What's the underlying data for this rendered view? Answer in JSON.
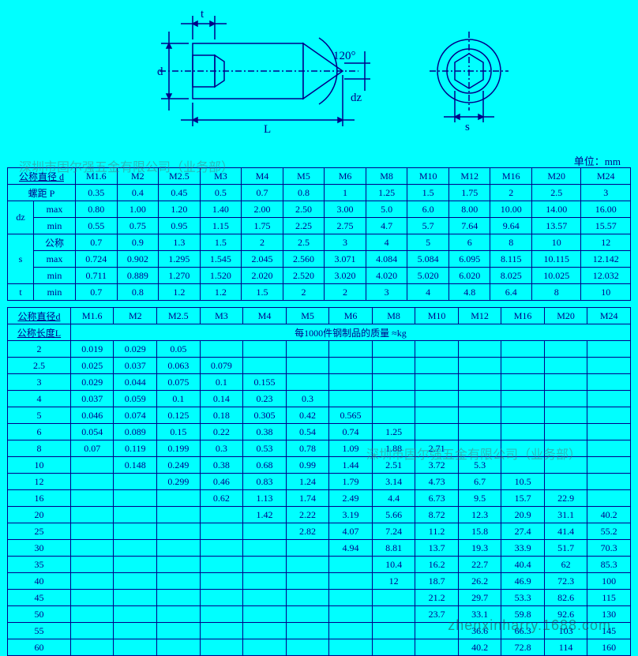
{
  "unit_label": "单位：mm",
  "diagram": {
    "labels": {
      "t": "t",
      "d": "d",
      "L": "L",
      "angle": "120°",
      "dz": "dz",
      "s": "s"
    },
    "stroke": "#000088",
    "fill": "#00ffff"
  },
  "watermarks": {
    "wm1": "深圳市固尔强五金有限公司（业务部）",
    "wm2": "深圳市固尔强五金有限公司（业务部）",
    "wm3": "zhenxinharry.1688.com"
  },
  "sizes_header": "公称直径 d",
  "sizes": [
    "M1.6",
    "M2",
    "M2.5",
    "M3",
    "M4",
    "M5",
    "M6",
    "M8",
    "M10",
    "M12",
    "M16",
    "M20",
    "M24"
  ],
  "rows_labels": {
    "pitch": "螺距 P",
    "dz": "dz",
    "s": "s",
    "t": "t",
    "max": "max",
    "min": "min",
    "nom": "公称"
  },
  "pitch": [
    "0.35",
    "0.4",
    "0.45",
    "0.5",
    "0.7",
    "0.8",
    "1",
    "1.25",
    "1.5",
    "1.75",
    "2",
    "2.5",
    "3"
  ],
  "dz_max": [
    "0.80",
    "1.00",
    "1.20",
    "1.40",
    "2.00",
    "2.50",
    "3.00",
    "5.0",
    "6.0",
    "8.00",
    "10.00",
    "14.00",
    "16.00"
  ],
  "dz_min": [
    "0.55",
    "0.75",
    "0.95",
    "1.15",
    "1.75",
    "2.25",
    "2.75",
    "4.7",
    "5.7",
    "7.64",
    "9.64",
    "13.57",
    "15.57"
  ],
  "s_nom": [
    "0.7",
    "0.9",
    "1.3",
    "1.5",
    "2",
    "2.5",
    "3",
    "4",
    "5",
    "6",
    "8",
    "10",
    "12"
  ],
  "s_max": [
    "0.724",
    "0.902",
    "1.295",
    "1.545",
    "2.045",
    "2.560",
    "3.071",
    "4.084",
    "5.084",
    "6.095",
    "8.115",
    "10.115",
    "12.142"
  ],
  "s_min": [
    "0.711",
    "0.889",
    "1.270",
    "1.520",
    "2.020",
    "2.520",
    "3.020",
    "4.020",
    "5.020",
    "6.020",
    "8.025",
    "10.025",
    "12.032"
  ],
  "t_min": [
    "0.7",
    "0.8",
    "1.2",
    "1.2",
    "1.5",
    "2",
    "2",
    "3",
    "4",
    "4.8",
    "6.4",
    "8",
    "10"
  ],
  "mass_header1": "公称直径d",
  "mass_header2": "公称长度L",
  "mass_caption": "每1000件钢制品的质量 ≈kg",
  "mass_lengths": [
    "2",
    "2.5",
    "3",
    "4",
    "5",
    "6",
    "8",
    "10",
    "12",
    "16",
    "20",
    "25",
    "30",
    "35",
    "40",
    "45",
    "50",
    "55",
    "60"
  ],
  "mass": [
    [
      "0.019",
      "0.029",
      "0.05",
      "",
      "",
      "",
      "",
      "",
      "",
      "",
      "",
      "",
      ""
    ],
    [
      "0.025",
      "0.037",
      "0.063",
      "0.079",
      "",
      "",
      "",
      "",
      "",
      "",
      "",
      "",
      ""
    ],
    [
      "0.029",
      "0.044",
      "0.075",
      "0.1",
      "0.155",
      "",
      "",
      "",
      "",
      "",
      "",
      "",
      ""
    ],
    [
      "0.037",
      "0.059",
      "0.1",
      "0.14",
      "0.23",
      "0.3",
      "",
      "",
      "",
      "",
      "",
      "",
      ""
    ],
    [
      "0.046",
      "0.074",
      "0.125",
      "0.18",
      "0.305",
      "0.42",
      "0.565",
      "",
      "",
      "",
      "",
      "",
      ""
    ],
    [
      "0.054",
      "0.089",
      "0.15",
      "0.22",
      "0.38",
      "0.54",
      "0.74",
      "1.25",
      "",
      "",
      "",
      "",
      ""
    ],
    [
      "0.07",
      "0.119",
      "0.199",
      "0.3",
      "0.53",
      "0.78",
      "1.09",
      "1.88",
      "2.71",
      "",
      "",
      "",
      ""
    ],
    [
      "",
      "0.148",
      "0.249",
      "0.38",
      "0.68",
      "0.99",
      "1.44",
      "2.51",
      "3.72",
      "5.3",
      "",
      "",
      ""
    ],
    [
      "",
      "",
      "0.299",
      "0.46",
      "0.83",
      "1.24",
      "1.79",
      "3.14",
      "4.73",
      "6.7",
      "10.5",
      "",
      ""
    ],
    [
      "",
      "",
      "",
      "0.62",
      "1.13",
      "1.74",
      "2.49",
      "4.4",
      "6.73",
      "9.5",
      "15.7",
      "22.9",
      ""
    ],
    [
      "",
      "",
      "",
      "",
      "1.42",
      "2.22",
      "3.19",
      "5.66",
      "8.72",
      "12.3",
      "20.9",
      "31.1",
      "40.2"
    ],
    [
      "",
      "",
      "",
      "",
      "",
      "2.82",
      "4.07",
      "7.24",
      "11.2",
      "15.8",
      "27.4",
      "41.4",
      "55.2"
    ],
    [
      "",
      "",
      "",
      "",
      "",
      "",
      "4.94",
      "8.81",
      "13.7",
      "19.3",
      "33.9",
      "51.7",
      "70.3"
    ],
    [
      "",
      "",
      "",
      "",
      "",
      "",
      "",
      "10.4",
      "16.2",
      "22.7",
      "40.4",
      "62",
      "85.3"
    ],
    [
      "",
      "",
      "",
      "",
      "",
      "",
      "",
      "12",
      "18.7",
      "26.2",
      "46.9",
      "72.3",
      "100"
    ],
    [
      "",
      "",
      "",
      "",
      "",
      "",
      "",
      "",
      "21.2",
      "29.7",
      "53.3",
      "82.6",
      "115"
    ],
    [
      "",
      "",
      "",
      "",
      "",
      "",
      "",
      "",
      "23.7",
      "33.1",
      "59.8",
      "92.6",
      "130"
    ],
    [
      "",
      "",
      "",
      "",
      "",
      "",
      "",
      "",
      "",
      "36.6",
      "66.3",
      "103",
      "145"
    ],
    [
      "",
      "",
      "",
      "",
      "",
      "",
      "",
      "",
      "",
      "40.2",
      "72.8",
      "114",
      "160"
    ]
  ]
}
